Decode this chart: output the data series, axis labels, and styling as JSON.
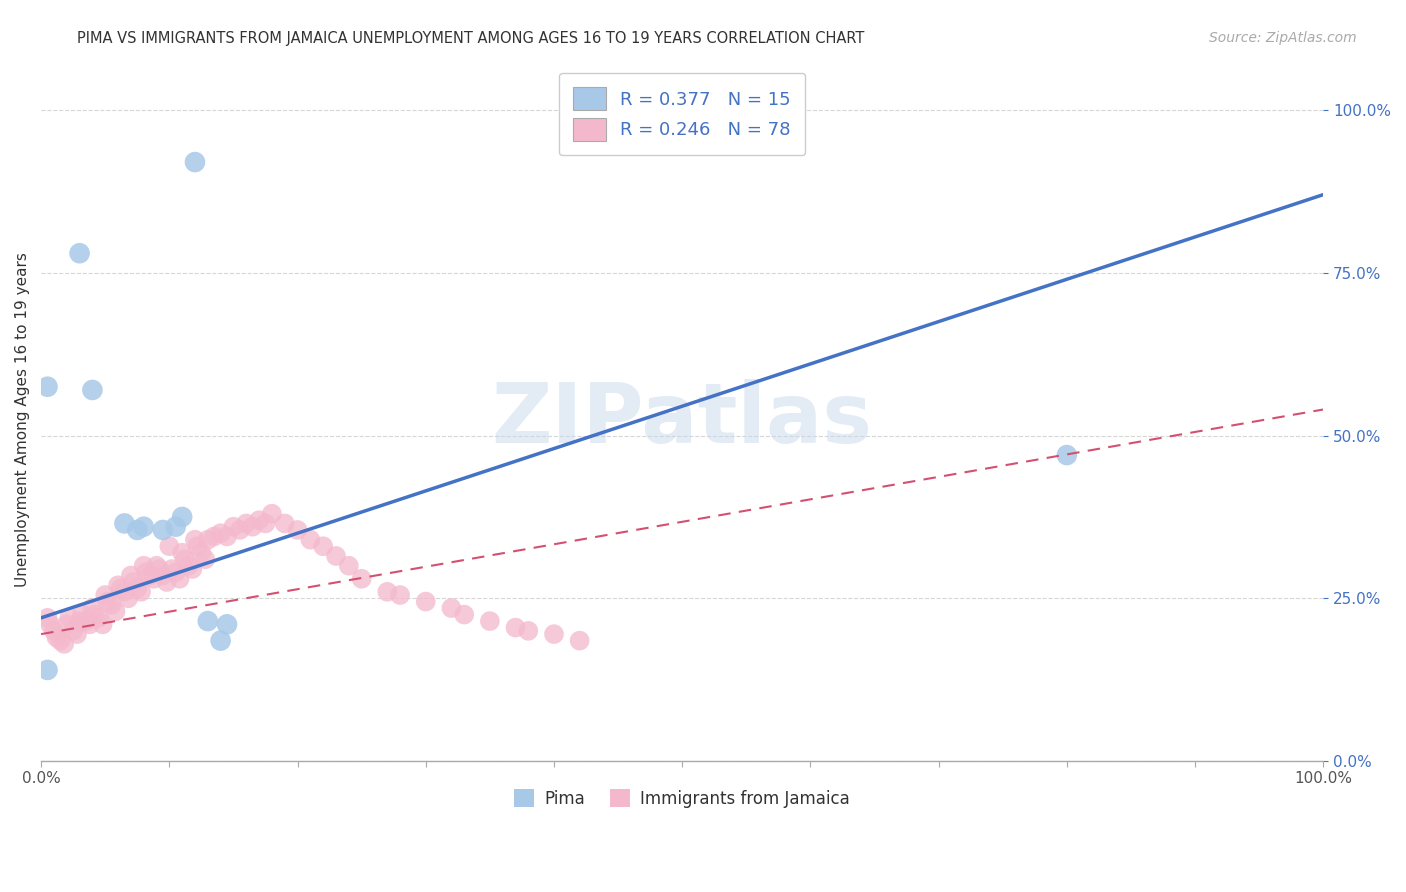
{
  "title": "PIMA VS IMMIGRANTS FROM JAMAICA UNEMPLOYMENT AMONG AGES 16 TO 19 YEARS CORRELATION CHART",
  "source": "Source: ZipAtlas.com",
  "ylabel": "Unemployment Among Ages 16 to 19 years",
  "watermark": "ZIPatlas",
  "pima_R": 0.377,
  "pima_N": 15,
  "jamaica_R": 0.246,
  "jamaica_N": 78,
  "pima_color": "#a8c8e8",
  "pima_line_color": "#4472c4",
  "jamaica_color": "#f4b8cc",
  "jamaica_line_color": "#d45070",
  "legend_text_color": "#4472c4",
  "pima_scatter_x": [
    0.12,
    0.03,
    0.04,
    0.065,
    0.005,
    0.075,
    0.08,
    0.095,
    0.105,
    0.11,
    0.13,
    0.14,
    0.145,
    0.005,
    0.8
  ],
  "pima_scatter_y": [
    0.92,
    0.78,
    0.57,
    0.365,
    0.575,
    0.355,
    0.36,
    0.355,
    0.36,
    0.375,
    0.215,
    0.185,
    0.21,
    0.14,
    0.47
  ],
  "jamaica_scatter_x": [
    0.005,
    0.007,
    0.01,
    0.012,
    0.015,
    0.018,
    0.02,
    0.022,
    0.025,
    0.028,
    0.03,
    0.032,
    0.035,
    0.038,
    0.04,
    0.042,
    0.045,
    0.048,
    0.05,
    0.052,
    0.055,
    0.058,
    0.06,
    0.062,
    0.065,
    0.068,
    0.07,
    0.072,
    0.075,
    0.078,
    0.08,
    0.082,
    0.085,
    0.088,
    0.09,
    0.092,
    0.095,
    0.098,
    0.1,
    0.102,
    0.105,
    0.108,
    0.11,
    0.112,
    0.115,
    0.118,
    0.12,
    0.122,
    0.125,
    0.128,
    0.13,
    0.135,
    0.14,
    0.145,
    0.15,
    0.155,
    0.16,
    0.165,
    0.17,
    0.175,
    0.18,
    0.19,
    0.2,
    0.21,
    0.22,
    0.23,
    0.24,
    0.25,
    0.27,
    0.28,
    0.3,
    0.32,
    0.33,
    0.35,
    0.37,
    0.38,
    0.4,
    0.42
  ],
  "jamaica_scatter_y": [
    0.22,
    0.21,
    0.2,
    0.19,
    0.185,
    0.18,
    0.21,
    0.22,
    0.2,
    0.195,
    0.215,
    0.225,
    0.215,
    0.21,
    0.235,
    0.225,
    0.22,
    0.21,
    0.255,
    0.245,
    0.24,
    0.23,
    0.27,
    0.265,
    0.26,
    0.25,
    0.285,
    0.275,
    0.265,
    0.26,
    0.3,
    0.29,
    0.285,
    0.28,
    0.3,
    0.295,
    0.285,
    0.275,
    0.33,
    0.295,
    0.29,
    0.28,
    0.32,
    0.31,
    0.3,
    0.295,
    0.34,
    0.33,
    0.32,
    0.31,
    0.34,
    0.345,
    0.35,
    0.345,
    0.36,
    0.355,
    0.365,
    0.36,
    0.37,
    0.365,
    0.38,
    0.365,
    0.355,
    0.34,
    0.33,
    0.315,
    0.3,
    0.28,
    0.26,
    0.255,
    0.245,
    0.235,
    0.225,
    0.215,
    0.205,
    0.2,
    0.195,
    0.185
  ],
  "pima_line_x0": 0.0,
  "pima_line_y0": 0.22,
  "pima_line_x1": 1.0,
  "pima_line_y1": 0.87,
  "jam_line_x0": 0.0,
  "jam_line_y0": 0.195,
  "jam_line_x1": 1.0,
  "jam_line_y1": 0.54,
  "xlim": [
    0.0,
    1.0
  ],
  "ylim": [
    0.0,
    1.05
  ],
  "yticks": [
    0.0,
    0.25,
    0.5,
    0.75,
    1.0
  ],
  "ytick_labels": [
    "0.0%",
    "25.0%",
    "50.0%",
    "75.0%",
    "100.0%"
  ],
  "xtick_positions": [
    0.0,
    0.1,
    0.2,
    0.3,
    0.4,
    0.5,
    0.6,
    0.7,
    0.8,
    0.9,
    1.0
  ],
  "grid_color": "#cccccc",
  "background_color": "#ffffff"
}
